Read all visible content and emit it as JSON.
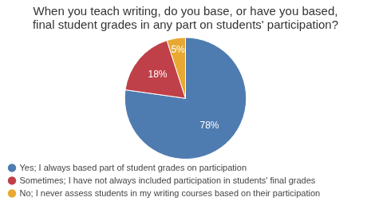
{
  "chart_data": {
    "type": "pie",
    "title": [
      "When you teach writing, do you base, or have you based,",
      "final student grades in any part on students' participation?"
    ],
    "categories": [
      "Yes; I always based part of student grades on participation",
      "Sometimes; I have not always included participation in students' final grades",
      "No; I never assess students in my writing courses based on their participation"
    ],
    "values": [
      78,
      18,
      5
    ],
    "value_labels": [
      "78%",
      "18%",
      "5%"
    ],
    "colors": [
      "#4f7cb0",
      "#bf4048",
      "#e8a832"
    ],
    "legend": "bottom",
    "data_labels": true
  }
}
